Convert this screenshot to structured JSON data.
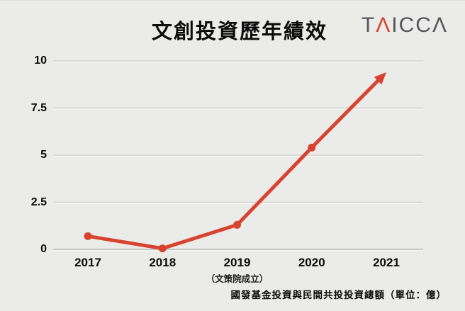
{
  "header": {
    "title": "文創投資歷年績效",
    "logo": {
      "prefix": "T",
      "accent": "Λ",
      "suffix": "ICCΛ"
    }
  },
  "chart_data": {
    "type": "line",
    "title": "文創投資歷年績效",
    "categories": [
      "2017",
      "2018",
      "2019",
      "2020",
      "2021"
    ],
    "x_sublabel": {
      "index": 2,
      "text": "（文策院成立）"
    },
    "series": [
      {
        "name": "國發基金投資與民間共投投資總額",
        "values": [
          0.7,
          0.05,
          1.3,
          5.4,
          9.4
        ]
      }
    ],
    "y_ticks": [
      "0",
      "2.5",
      "5",
      "7.5",
      "10"
    ],
    "y_tick_values": [
      0,
      2.5,
      5,
      7.5,
      10
    ],
    "ylim": [
      0,
      10
    ],
    "grid": true,
    "legend_position": "none",
    "last_point_style": "arrow",
    "caption": "國發基金投資與民間共投投資總額（單位：億）"
  },
  "colors": {
    "background": "#ebebe9",
    "line": "#d8432f",
    "grid": "#d2d2d0",
    "grid_highlight": "#f6f6f5",
    "zero_axis": "#b7b7b5",
    "text": "#0c0c0c",
    "logo_gray": "#55565a",
    "logo_red": "#d8432f"
  }
}
